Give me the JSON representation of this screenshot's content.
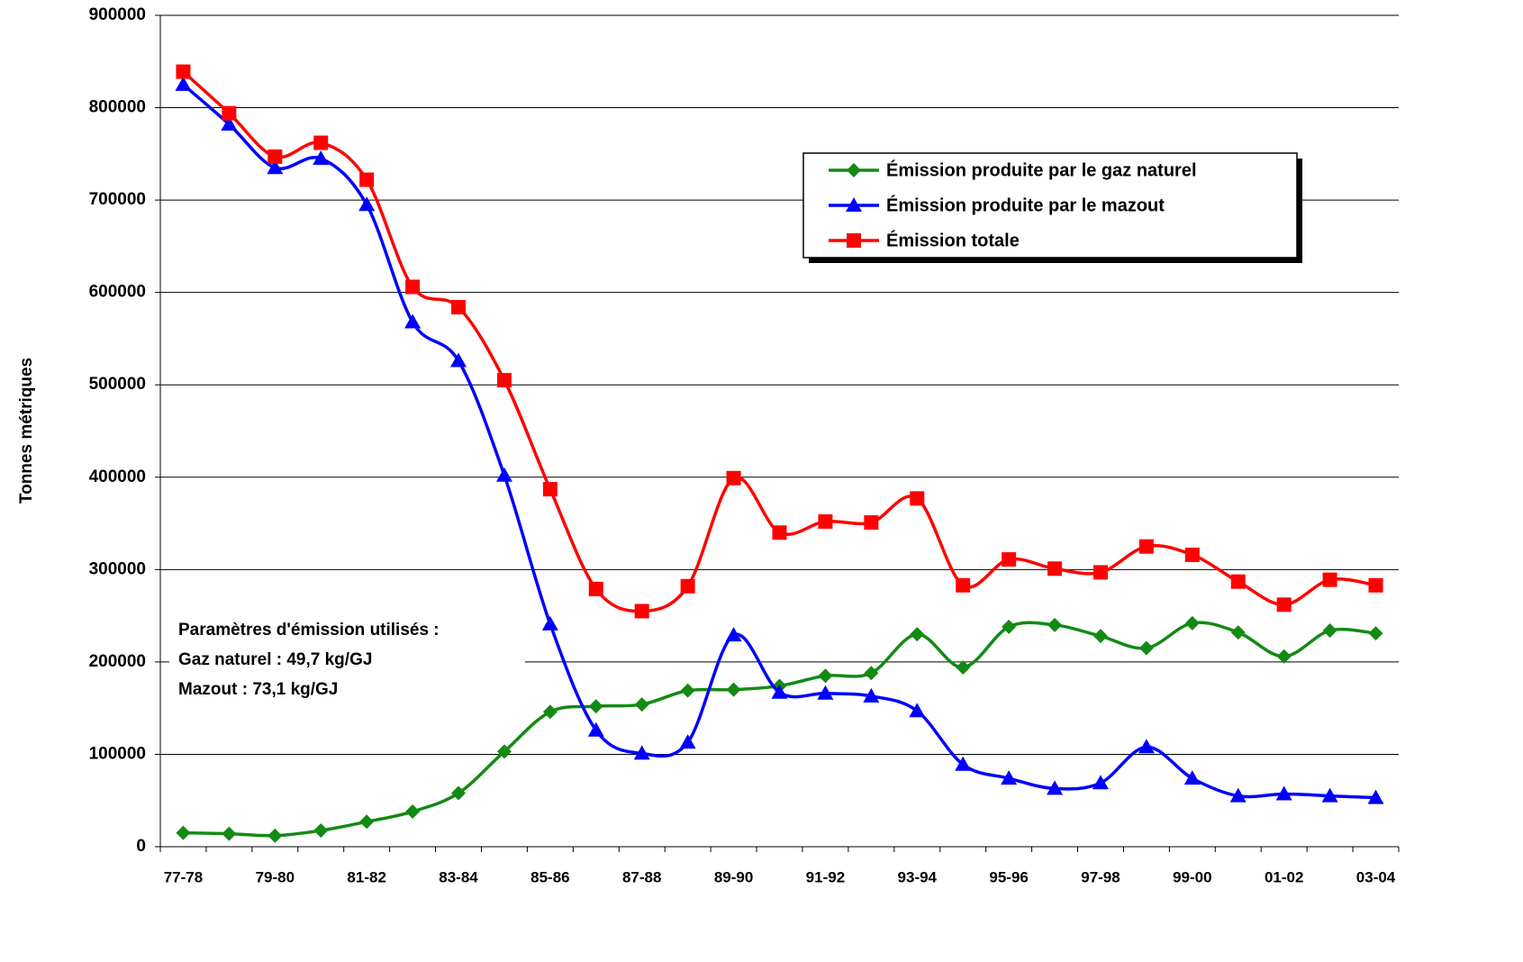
{
  "chart_data": {
    "type": "line",
    "ylabel": "Tonnes métriques",
    "categories": [
      "77-78",
      null,
      "79-80",
      null,
      "81-82",
      null,
      "83-84",
      null,
      "85-86",
      null,
      "87-88",
      null,
      "89-90",
      null,
      "91-92",
      null,
      "93-94",
      null,
      "95-96",
      null,
      "97-98",
      null,
      "99-00",
      null,
      "01-02",
      null,
      "03-04"
    ],
    "series": [
      {
        "name": "Émission produite par le gaz naturel",
        "color": "#138a13",
        "marker": "diamond",
        "values": [
          15000,
          14000,
          12000,
          17500,
          27000,
          38000,
          58000,
          103000,
          146000,
          152000,
          154000,
          169000,
          170000,
          174000,
          185000,
          188000,
          230000,
          194000,
          238000,
          240000,
          228000,
          215000,
          242000,
          232000,
          206000,
          234000,
          231000
        ]
      },
      {
        "name": "Émission produite par le mazout",
        "color": "#0000ff",
        "marker": "triangle",
        "values": [
          825000,
          782000,
          735000,
          745000,
          695000,
          568000,
          526000,
          402000,
          241000,
          126000,
          101000,
          113000,
          229000,
          167000,
          166000,
          163000,
          147000,
          89000,
          74000,
          63000,
          69000,
          108000,
          74000,
          55000,
          57000,
          55000,
          53000
        ]
      },
      {
        "name": "Émission totale",
        "color": "#ff0000",
        "marker": "square",
        "values": [
          839000,
          794000,
          747000,
          762000,
          722000,
          606000,
          584000,
          505000,
          387000,
          279000,
          255000,
          282000,
          399000,
          340000,
          352000,
          351000,
          377000,
          283000,
          311000,
          301000,
          297000,
          325000,
          316000,
          287000,
          262000,
          289000,
          283000
        ]
      }
    ],
    "annotations": [
      "Paramètres d'émission utilisés :",
      "Gaz naturel : 49,7 kg/GJ",
      "Mazout : 73,1 kg/GJ"
    ],
    "ylim": [
      0,
      900000
    ],
    "yticks": [
      0,
      100000,
      200000,
      300000,
      400000,
      500000,
      600000,
      700000,
      800000,
      900000
    ],
    "grid": true,
    "smooth": true,
    "legend": "upper right"
  }
}
